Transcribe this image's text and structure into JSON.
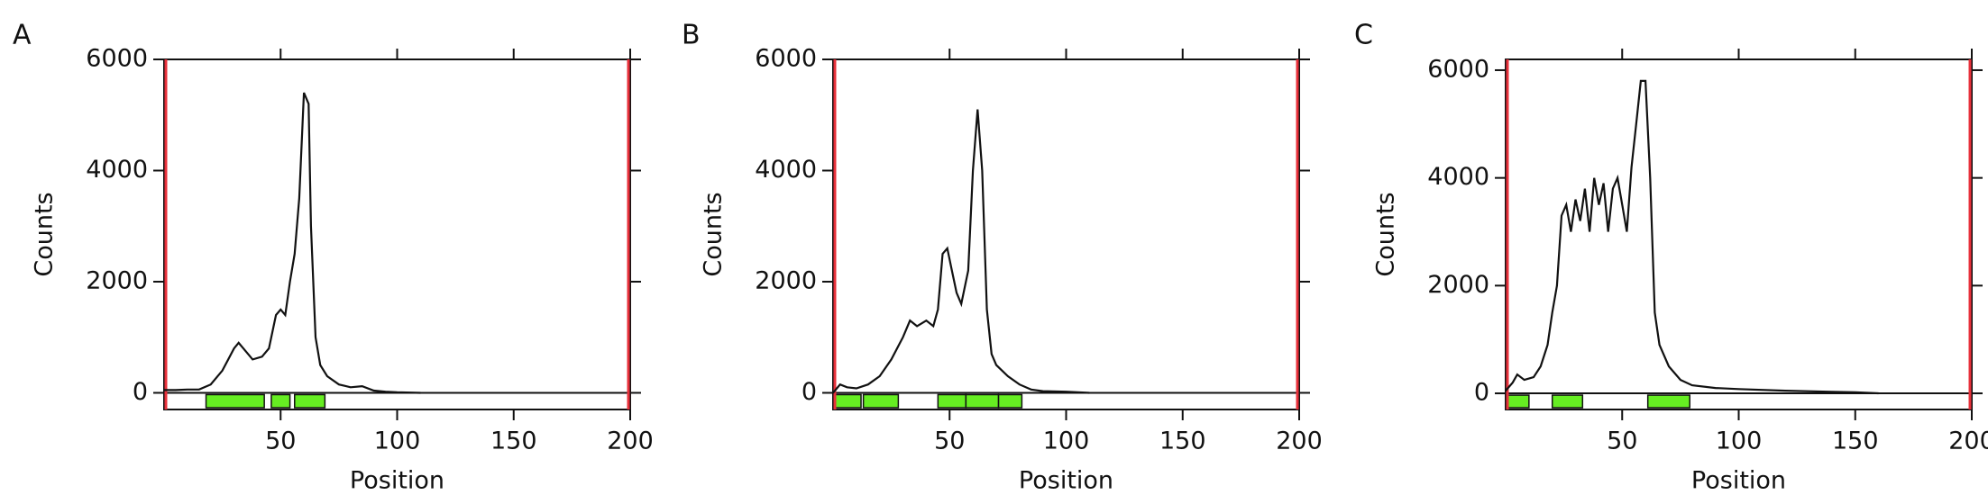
{
  "chart_data": [
    {
      "type": "line",
      "panel_label": "A",
      "xlabel": "Position",
      "ylabel": "Counts",
      "xlim": [
        0,
        200
      ],
      "ylim": [
        -300,
        6000
      ],
      "xticks": [
        50,
        100,
        150,
        200
      ],
      "yticks": [
        0,
        2000,
        4000,
        6000
      ],
      "color": "#111111",
      "region_color": "#66ee22",
      "marker_color": "#e8303a",
      "x": [
        0,
        5,
        10,
        15,
        20,
        25,
        30,
        32,
        35,
        38,
        42,
        45,
        48,
        50,
        52,
        54,
        56,
        58,
        60,
        62,
        63,
        65,
        67,
        70,
        75,
        80,
        85,
        90,
        95,
        100,
        110
      ],
      "values": [
        50,
        50,
        60,
        60,
        150,
        400,
        800,
        900,
        750,
        600,
        650,
        800,
        1400,
        1500,
        1400,
        2000,
        2500,
        3500,
        5400,
        5200,
        3000,
        1000,
        500,
        300,
        150,
        100,
        120,
        40,
        20,
        10,
        0
      ],
      "regions": [
        [
          18,
          43
        ],
        [
          46,
          54
        ],
        [
          56,
          69
        ]
      ]
    },
    {
      "type": "line",
      "panel_label": "B",
      "xlabel": "Position",
      "ylabel": "Counts",
      "xlim": [
        0,
        200
      ],
      "ylim": [
        -300,
        6000
      ],
      "xticks": [
        50,
        100,
        150,
        200
      ],
      "yticks": [
        0,
        2000,
        4000,
        6000
      ],
      "color": "#111111",
      "region_color": "#66ee22",
      "marker_color": "#e8303a",
      "x": [
        0,
        3,
        6,
        10,
        15,
        20,
        25,
        30,
        33,
        36,
        40,
        43,
        45,
        47,
        49,
        51,
        53,
        55,
        58,
        60,
        62,
        64,
        66,
        68,
        70,
        75,
        80,
        85,
        90,
        100,
        110
      ],
      "values": [
        0,
        150,
        100,
        80,
        150,
        300,
        600,
        1000,
        1300,
        1200,
        1300,
        1200,
        1500,
        2500,
        2600,
        2200,
        1800,
        1600,
        2200,
        4000,
        5100,
        4000,
        1500,
        700,
        500,
        300,
        150,
        60,
        30,
        20,
        0
      ],
      "regions": [
        [
          0,
          12
        ],
        [
          13,
          28
        ],
        [
          45,
          57
        ],
        [
          57,
          71
        ],
        [
          71,
          81
        ]
      ]
    },
    {
      "type": "line",
      "panel_label": "C",
      "xlabel": "Position",
      "ylabel": "Counts",
      "xlim": [
        0,
        200
      ],
      "ylim": [
        -300,
        6200
      ],
      "xticks": [
        50,
        100,
        150,
        200
      ],
      "yticks": [
        0,
        2000,
        4000,
        6000
      ],
      "color": "#111111",
      "region_color": "#66ee22",
      "marker_color": "#e8303a",
      "x": [
        0,
        3,
        5,
        8,
        12,
        15,
        18,
        20,
        22,
        24,
        26,
        28,
        30,
        32,
        34,
        36,
        38,
        40,
        42,
        44,
        46,
        48,
        50,
        52,
        54,
        56,
        58,
        60,
        62,
        64,
        66,
        70,
        75,
        80,
        90,
        100,
        120,
        140,
        150,
        160
      ],
      "values": [
        50,
        200,
        350,
        250,
        300,
        500,
        900,
        1500,
        2000,
        3300,
        3500,
        3000,
        3600,
        3200,
        3800,
        3000,
        4000,
        3500,
        3900,
        3000,
        3800,
        4000,
        3500,
        3000,
        4200,
        5000,
        5800,
        5800,
        4000,
        1500,
        900,
        500,
        250,
        150,
        100,
        80,
        50,
        30,
        20,
        0
      ],
      "regions": [
        [
          0,
          10
        ],
        [
          20,
          33
        ],
        [
          61,
          79
        ]
      ]
    }
  ]
}
